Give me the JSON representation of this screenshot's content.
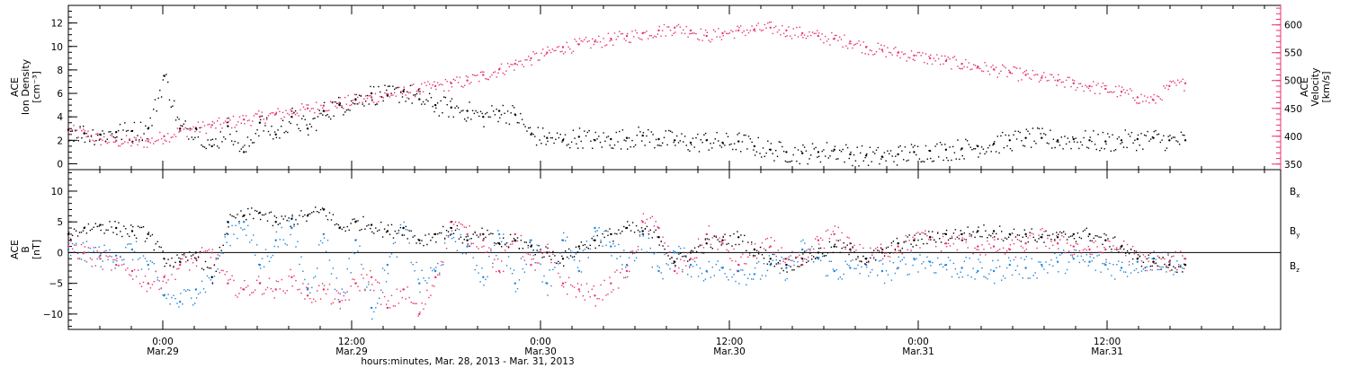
{
  "chart_data": [
    {
      "type": "scatter",
      "panel": "top",
      "left_axis": {
        "label_lines": [
          "ACE",
          "Ion Density",
          "[cm⁻³]"
        ],
        "range": [
          -0.5,
          13.5
        ],
        "ticks": [
          0,
          2,
          4,
          6,
          8,
          10,
          12
        ],
        "tick_labels": [
          "0",
          "2",
          "4",
          "6",
          "8",
          "10",
          "12"
        ]
      },
      "right_axis": {
        "label_lines": [
          "ACE",
          "Velocity",
          "[km/s]"
        ],
        "range": [
          340,
          635
        ],
        "ticks": [
          350,
          400,
          450,
          500,
          550,
          600
        ],
        "tick_labels": [
          "350",
          "400",
          "450",
          "500",
          "550",
          "600"
        ],
        "color": "#e8336b"
      },
      "series": [
        {
          "axis": "left",
          "color": "#000000",
          "x_hours": [
            0,
            1,
            2,
            3,
            4,
            5,
            6,
            7,
            8,
            9,
            10,
            11,
            12,
            13,
            14,
            15,
            16,
            17,
            18,
            19,
            20,
            21,
            22,
            23,
            24,
            25,
            26,
            27,
            28,
            29,
            30,
            31,
            32,
            33,
            34,
            35,
            36,
            37,
            38,
            39,
            40,
            41,
            42,
            43,
            44,
            45,
            46,
            47,
            48,
            49,
            50,
            51,
            52,
            53,
            54,
            55,
            56,
            57,
            58,
            59,
            60,
            61,
            62,
            63,
            64,
            65,
            66,
            67,
            68,
            69,
            70
          ],
          "values": [
            2.9,
            2.6,
            2.5,
            2.7,
            2.8,
            3.0,
            7.5,
            3.0,
            3.0,
            1.5,
            3.2,
            1.0,
            3.5,
            2.5,
            4.0,
            3.0,
            4.5,
            5.0,
            5.5,
            6.0,
            5.8,
            6.2,
            5.5,
            5.0,
            4.8,
            4.5,
            4.0,
            4.5,
            4.2,
            2.5,
            2.2,
            2.0,
            2.3,
            2.0,
            2.1,
            2.2,
            2.4,
            2.1,
            2.0,
            1.8,
            2.0,
            1.8,
            1.9,
            1.5,
            1.2,
            1.0,
            0.9,
            1.0,
            1.2,
            0.8,
            0.7,
            0.6,
            0.8,
            1.0,
            1.1,
            1.2,
            1.3,
            1.5,
            1.7,
            2.0,
            2.2,
            2.2,
            2.0,
            2.1,
            2.0,
            1.9,
            2.0,
            2.1,
            2.2,
            2.0,
            2.0
          ]
        },
        {
          "axis": "right",
          "color": "#e8336b",
          "x_hours": [
            0,
            1,
            2,
            3,
            4,
            5,
            6,
            7,
            8,
            9,
            10,
            11,
            12,
            13,
            14,
            15,
            16,
            17,
            18,
            19,
            20,
            21,
            22,
            23,
            24,
            25,
            26,
            27,
            28,
            29,
            30,
            31,
            32,
            33,
            34,
            35,
            36,
            37,
            38,
            39,
            40,
            41,
            42,
            43,
            44,
            45,
            46,
            47,
            48,
            49,
            50,
            51,
            52,
            53,
            54,
            55,
            56,
            57,
            58,
            59,
            60,
            61,
            62,
            63,
            64,
            65,
            66,
            67,
            68,
            69,
            70
          ],
          "values": [
            410,
            405,
            395,
            392,
            390,
            391,
            400,
            410,
            415,
            420,
            425,
            430,
            435,
            440,
            445,
            450,
            455,
            460,
            465,
            470,
            475,
            480,
            485,
            490,
            495,
            500,
            510,
            520,
            530,
            540,
            550,
            560,
            565,
            570,
            575,
            580,
            585,
            590,
            595,
            590,
            580,
            585,
            590,
            592,
            595,
            590,
            585,
            580,
            575,
            570,
            560,
            555,
            550,
            545,
            540,
            535,
            530,
            525,
            520,
            515,
            510,
            505,
            500,
            495,
            490,
            485,
            480,
            470,
            465,
            490,
            495
          ]
        }
      ]
    },
    {
      "type": "scatter",
      "panel": "bottom",
      "left_axis": {
        "label_lines": [
          "ACE",
          "B",
          "[nT]"
        ],
        "range": [
          -12.5,
          13.5
        ],
        "ticks": [
          -10,
          -5,
          0,
          5,
          10
        ],
        "tick_labels": [
          "−10",
          "−5",
          "0",
          "5",
          "10"
        ]
      },
      "zero_line": true,
      "series": [
        {
          "name": "Bx",
          "name_main": "B",
          "name_sub": "x",
          "color": "#000000",
          "x_hours": [
            0,
            1,
            2,
            3,
            4,
            5,
            6,
            7,
            8,
            9,
            10,
            11,
            12,
            13,
            14,
            15,
            16,
            17,
            18,
            19,
            20,
            21,
            22,
            23,
            24,
            25,
            26,
            27,
            28,
            29,
            30,
            31,
            32,
            33,
            34,
            35,
            36,
            37,
            38,
            39,
            40,
            41,
            42,
            43,
            44,
            45,
            46,
            47,
            48,
            49,
            50,
            51,
            52,
            53,
            54,
            55,
            56,
            57,
            58,
            59,
            60,
            61,
            62,
            63,
            64,
            65,
            66,
            67,
            68,
            69,
            70
          ],
          "values": [
            3.0,
            4.0,
            4.5,
            4.0,
            3.5,
            3.0,
            -1.0,
            -1.5,
            0.0,
            -4.0,
            5.0,
            6.0,
            6.5,
            5.0,
            5.5,
            6.0,
            7.0,
            4.0,
            5.0,
            4.5,
            3.5,
            4.0,
            2.0,
            3.0,
            4.0,
            2.0,
            3.0,
            1.5,
            2.0,
            1.0,
            0.0,
            -1.0,
            1.0,
            2.0,
            3.0,
            4.0,
            3.5,
            2.5,
            -1.5,
            0.0,
            1.5,
            2.0,
            2.5,
            0.5,
            -1.0,
            -2.0,
            -1.0,
            0.0,
            1.0,
            0.5,
            -1.0,
            0.0,
            1.5,
            2.0,
            2.5,
            3.0,
            3.0,
            3.5,
            3.5,
            3.0,
            3.0,
            2.5,
            2.5,
            3.0,
            3.0,
            2.0,
            1.0,
            -1.0,
            -1.5,
            -2.0,
            -2.0
          ]
        },
        {
          "name": "By",
          "name_main": "B",
          "name_sub": "y",
          "color": "#1e82d8",
          "x_hours": [
            0,
            1,
            2,
            3,
            4,
            5,
            6,
            7,
            8,
            9,
            10,
            11,
            12,
            13,
            14,
            15,
            16,
            17,
            18,
            19,
            20,
            21,
            22,
            23,
            24,
            25,
            26,
            27,
            28,
            29,
            30,
            31,
            32,
            33,
            34,
            35,
            36,
            37,
            38,
            39,
            40,
            41,
            42,
            43,
            44,
            45,
            46,
            47,
            48,
            49,
            50,
            51,
            52,
            53,
            54,
            55,
            56,
            57,
            58,
            59,
            60,
            61,
            62,
            63,
            64,
            65,
            66,
            67,
            68,
            69,
            70
          ],
          "values": [
            0.5,
            0.0,
            -0.5,
            -0.5,
            0.5,
            -2.0,
            -7.0,
            -8.0,
            -6.0,
            -4.0,
            3.0,
            5.0,
            -2.0,
            2.0,
            4.0,
            -6.0,
            3.0,
            -8.0,
            2.0,
            -9.0,
            -2.0,
            4.0,
            -5.0,
            -3.0,
            3.0,
            1.0,
            -4.0,
            3.0,
            -5.0,
            2.0,
            -5.0,
            2.0,
            -3.0,
            4.0,
            1.0,
            -2.0,
            3.0,
            -3.0,
            0.0,
            -2.0,
            -3.0,
            -2.5,
            -3.0,
            -3.5,
            -2.0,
            -2.5,
            0.5,
            -1.0,
            -3.0,
            -2.5,
            -2.0,
            -3.0,
            -2.5,
            -1.0,
            -1.5,
            -2.0,
            -2.5,
            -3.0,
            -3.0,
            -2.0,
            -2.5,
            -2.0,
            -1.5,
            -1.0,
            -1.5,
            -2.0,
            -2.5,
            -1.5,
            -1.0,
            -1.5,
            -2.0
          ]
        },
        {
          "name": "Bz",
          "name_main": "B",
          "name_sub": "z",
          "color": "#e8336b",
          "x_hours": [
            0,
            1,
            2,
            3,
            4,
            5,
            6,
            7,
            8,
            9,
            10,
            11,
            12,
            13,
            14,
            15,
            16,
            17,
            18,
            19,
            20,
            21,
            22,
            23,
            24,
            25,
            26,
            27,
            28,
            29,
            30,
            31,
            32,
            33,
            34,
            35,
            36,
            37,
            38,
            39,
            40,
            41,
            42,
            43,
            44,
            45,
            46,
            47,
            48,
            49,
            50,
            51,
            52,
            53,
            54,
            55,
            56,
            57,
            58,
            59,
            60,
            61,
            62,
            63,
            64,
            65,
            66,
            67,
            68,
            69,
            70
          ],
          "values": [
            1.0,
            0.0,
            -1.0,
            -2.0,
            -3.0,
            -5.0,
            -4.0,
            -2.0,
            -1.0,
            0.0,
            -5.0,
            -6.0,
            -5.0,
            -6.0,
            -4.0,
            -7.0,
            -6.0,
            -8.0,
            -5.0,
            -4.0,
            -9.0,
            -6.0,
            -10.0,
            -4.0,
            5.0,
            3.0,
            2.0,
            -3.0,
            3.0,
            -2.0,
            0.0,
            -5.0,
            -6.0,
            -7.0,
            -5.0,
            -3.0,
            5.0,
            4.0,
            -3.0,
            -1.0,
            3.0,
            1.5,
            -2.0,
            0.5,
            1.0,
            -1.0,
            -2.0,
            2.0,
            3.0,
            1.5,
            -1.0,
            0.5,
            1.0,
            2.0,
            2.5,
            1.5,
            2.0,
            1.0,
            1.0,
            0.5,
            1.5,
            2.5,
            1.5,
            1.0,
            0.5,
            0.5,
            1.0,
            -1.0,
            -1.5,
            -1.5,
            -1.0
          ]
        }
      ]
    }
  ],
  "x_axis": {
    "xlabel": "hours:minutes, Mar. 28, 2013 - Mar. 31, 2013",
    "tick_labels": [
      {
        "time": "0:00",
        "date": "Mar.29"
      },
      {
        "time": "12:00",
        "date": "Mar.29"
      },
      {
        "time": "0:00",
        "date": "Mar.30"
      },
      {
        "time": "12:00",
        "date": "Mar.30"
      },
      {
        "time": "0:00",
        "date": "Mar.31"
      },
      {
        "time": "12:00",
        "date": "Mar.31"
      }
    ]
  }
}
